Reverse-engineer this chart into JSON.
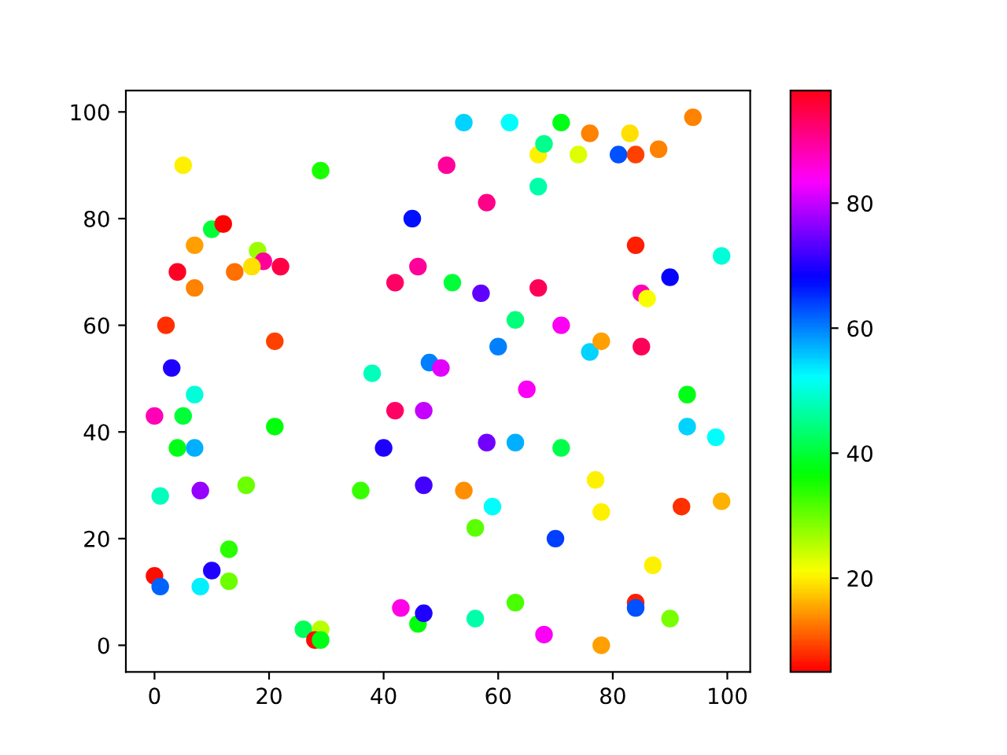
{
  "chart_data": {
    "type": "scatter",
    "x": [
      5,
      29,
      10,
      12,
      18,
      7,
      19,
      22,
      4,
      14,
      17,
      7,
      2,
      21,
      3,
      0,
      5,
      7,
      4,
      7,
      1,
      8,
      16,
      21,
      0,
      1,
      8,
      10,
      13,
      13,
      26,
      29,
      28,
      29,
      36,
      38,
      40,
      42,
      42,
      45,
      46,
      47,
      47,
      48,
      50,
      43,
      46,
      47,
      51,
      54,
      52,
      54,
      57,
      56,
      56,
      58,
      58,
      59,
      60,
      62,
      63,
      63,
      63,
      65,
      67,
      68,
      67,
      67,
      68,
      70,
      71,
      71,
      71,
      74,
      76,
      76,
      77,
      78,
      78,
      78,
      81,
      83,
      84,
      84,
      84,
      84,
      85,
      86,
      85,
      87,
      88,
      90,
      90,
      92,
      93,
      93,
      94,
      98,
      99,
      99
    ],
    "values": [
      90,
      89,
      78,
      79,
      74,
      75,
      72,
      71,
      70,
      70,
      71,
      67,
      60,
      57,
      52,
      43,
      43,
      47,
      37,
      37,
      28,
      29,
      30,
      41,
      13,
      11,
      11,
      14,
      18,
      12,
      3,
      3,
      1,
      1,
      29,
      51,
      37,
      44,
      68,
      80,
      71,
      44,
      30,
      53,
      52,
      7,
      4,
      6,
      90,
      98,
      68,
      29,
      66,
      22,
      5,
      83,
      38,
      26,
      56,
      98,
      61,
      38,
      8,
      48,
      92,
      94,
      86,
      67,
      2,
      20,
      98,
      60,
      37,
      92,
      96,
      55,
      31,
      57,
      25,
      0,
      92,
      96,
      92,
      75,
      8,
      7,
      66,
      65,
      56,
      15,
      93,
      69,
      5,
      26,
      47,
      41,
      99,
      39,
      73,
      27
    ],
    "cvalues": [
      20,
      35,
      40,
      5,
      27,
      15,
      90,
      95,
      97,
      12,
      19,
      13,
      8,
      9,
      70,
      88,
      40,
      50,
      38,
      57,
      48,
      77,
      30,
      37,
      6,
      62,
      53,
      70,
      34,
      30,
      42,
      25,
      6,
      38,
      33,
      48,
      70,
      93,
      93,
      67,
      90,
      80,
      72,
      60,
      82,
      85,
      37,
      70,
      90,
      55,
      40,
      14,
      74,
      31,
      47,
      91,
      75,
      52,
      60,
      52,
      44,
      57,
      32,
      84,
      20,
      45,
      47,
      94,
      84,
      64,
      38,
      84,
      41,
      23,
      13,
      55,
      20,
      15,
      20,
      15,
      63,
      19,
      9,
      7,
      7,
      63,
      88,
      21,
      94,
      20,
      13,
      68,
      29,
      8,
      38,
      55,
      13,
      52,
      50,
      16
    ],
    "xlim": [
      -5,
      104
    ],
    "ylim": [
      -5,
      104
    ],
    "xticks": [
      0,
      20,
      40,
      60,
      80,
      100
    ],
    "yticks": [
      0,
      20,
      40,
      60,
      80,
      100
    ],
    "clim": [
      5,
      98
    ],
    "cticks": [
      20,
      40,
      60,
      80
    ],
    "marker": "circle",
    "grid": false,
    "legend": false
  }
}
